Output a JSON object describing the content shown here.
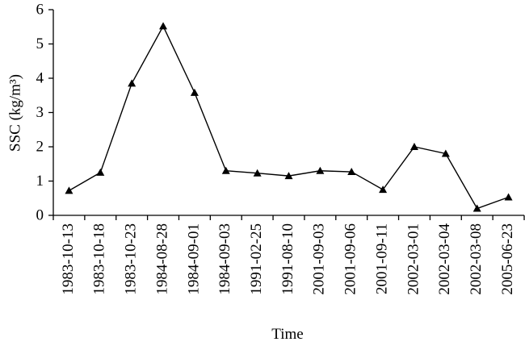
{
  "chart_data": {
    "type": "line",
    "x_label": "Time",
    "y_label": "SSC (kg/m³)",
    "categories": [
      "1983-10-13",
      "1983-10-18",
      "1983-10-23",
      "1984-08-28",
      "1984-09-01",
      "1984-09-03",
      "1991-02-25",
      "1991-08-10",
      "2001-09-03",
      "2001-09-06",
      "2001-09-11",
      "2002-03-01",
      "2002-03-04",
      "2002-03-08",
      "2005-06-23"
    ],
    "values": [
      0.72,
      1.25,
      3.85,
      5.52,
      3.58,
      1.3,
      1.23,
      1.15,
      1.3,
      1.27,
      0.75,
      2.0,
      1.8,
      0.2,
      0.53
    ],
    "color": "#000000",
    "marker": "triangle",
    "ylim": [
      0,
      6
    ],
    "yticks": [
      0,
      1,
      2,
      3,
      4,
      5,
      6
    ],
    "grid": false
  }
}
